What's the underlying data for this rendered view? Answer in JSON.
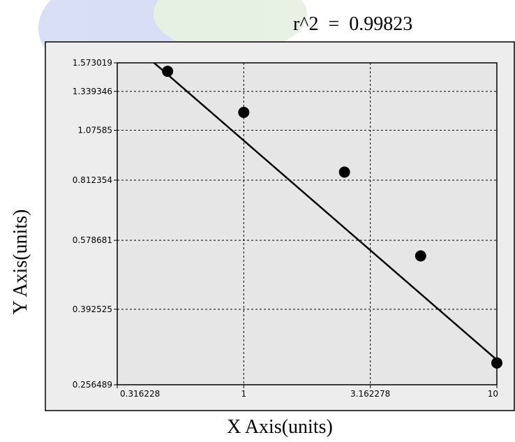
{
  "chart_data": {
    "type": "scatter",
    "annotation": "r^2  =  0.99823",
    "xlabel": "X Axis(units)",
    "ylabel": "Y Axis(units)",
    "x_scale": "log",
    "y_scale": "log",
    "xlim": [
      0.316228,
      10
    ],
    "ylim": [
      0.256489,
      1.573019
    ],
    "x_ticks": [
      {
        "value": 0.316228,
        "label": "0.316228"
      },
      {
        "value": 1,
        "label": "1"
      },
      {
        "value": 3.162278,
        "label": "3.162278"
      },
      {
        "value": 10,
        "label": "10"
      }
    ],
    "y_ticks": [
      {
        "value": 1.573019,
        "label": "1.573019"
      },
      {
        "value": 1.339346,
        "label": "1.339346"
      },
      {
        "value": 1.07585,
        "label": "1.07585"
      },
      {
        "value": 0.812354,
        "label": "0.812354"
      },
      {
        "value": 0.578681,
        "label": "0.578681"
      },
      {
        "value": 0.392525,
        "label": "0.392525"
      },
      {
        "value": 0.256489,
        "label": "0.256489"
      }
    ],
    "grid": true,
    "points": [
      {
        "x": 0.5,
        "y": 1.5
      },
      {
        "x": 1,
        "y": 1.19
      },
      {
        "x": 2.5,
        "y": 0.85
      },
      {
        "x": 5,
        "y": 0.53
      },
      {
        "x": 10,
        "y": 0.29
      }
    ],
    "fit_line": {
      "x": [
        0.4,
        10
      ],
      "y": [
        1.66,
        0.295
      ]
    },
    "colors": {
      "plot_bg": "#e6e6e6",
      "outer_bg": "#ededed",
      "point": "#000000",
      "line": "#000000"
    }
  }
}
